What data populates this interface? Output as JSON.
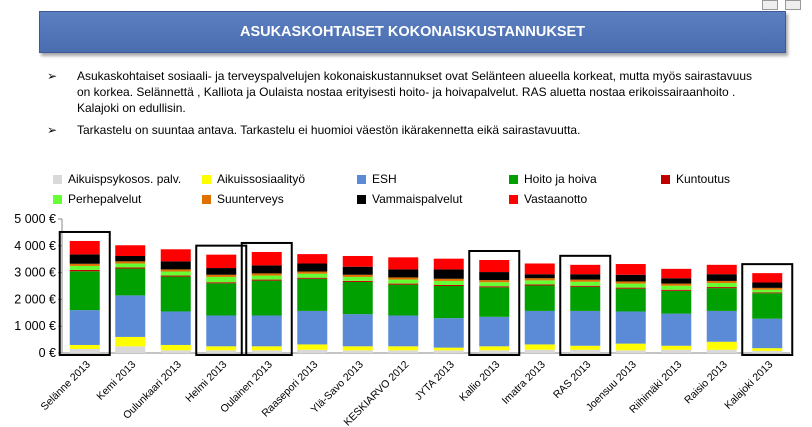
{
  "title": "ASUKASKOHTAISET KOKONAISKUSTANNUKSET",
  "bullets": [
    "Asukaskohtaiset sosiaali- ja terveyspalvelujen  kokonaiskustannukset ovat Selänteen alueella korkeat, mutta myös sairastavuus on korkea.  Selännettä , Kalliota ja Oulaista nostaa erityisesti hoito- ja hoivapalvelut. RAS aluetta nostaa erikoissairaanhoito . Kalajoki on edullisin.",
    "Tarkastelu on suuntaa antava. Tarkastelu ei huomioi väestön ikärakennetta eikä sairastavuutta."
  ],
  "bullet_mark": "➢",
  "chart_data": {
    "type": "bar",
    "stacked": true,
    "categories": [
      "Selänne 2013",
      "Kemi 2013",
      "Oulunkaari 2013",
      "Helmi 2013",
      "Oulainen 2013",
      "Raasepori 2013",
      "Ylä-Savo 2013",
      "KESKIARVO 2012",
      "JYTA 2013",
      "Kallio 2013",
      "Imatra 2013",
      "RAS 2013",
      "Joensuu 2013",
      "Riihimäki 2013",
      "Raisio 2013",
      "Kalajoki 2013"
    ],
    "highlighted": [
      "Selänne 2013",
      "Helmi 2013",
      "Oulainen 2013",
      "Kallio 2013",
      "RAS 2013",
      "Kalajoki 2013"
    ],
    "series": [
      {
        "name": "Aikuispsykosos. palv.",
        "color": "#d9d9d9",
        "values": [
          150,
          250,
          100,
          100,
          100,
          120,
          100,
          100,
          100,
          100,
          120,
          120,
          100,
          120,
          120,
          80
        ]
      },
      {
        "name": "Aikuissosiaalityö",
        "color": "#ffff00",
        "values": [
          150,
          350,
          200,
          150,
          150,
          200,
          150,
          150,
          100,
          150,
          200,
          150,
          250,
          150,
          300,
          100
        ]
      },
      {
        "name": "ESH",
        "color": "#5b8bd6",
        "values": [
          1300,
          1550,
          1250,
          1150,
          1150,
          1250,
          1200,
          1150,
          1100,
          1100,
          1250,
          1300,
          1200,
          1200,
          1150,
          1100
        ]
      },
      {
        "name": "Hoito ja hoiva",
        "color": "#00a000",
        "values": [
          1450,
          1000,
          1300,
          1200,
          1300,
          1200,
          1200,
          1150,
          1200,
          1100,
          950,
          900,
          850,
          850,
          850,
          950
        ]
      },
      {
        "name": "Kuntoutus",
        "color": "#c00000",
        "values": [
          50,
          40,
          40,
          40,
          40,
          40,
          40,
          40,
          40,
          40,
          40,
          40,
          40,
          40,
          40,
          30
        ]
      },
      {
        "name": "Perhepalvelut",
        "color": "#66ff33",
        "values": [
          150,
          150,
          150,
          200,
          150,
          150,
          150,
          150,
          150,
          150,
          150,
          150,
          150,
          150,
          150,
          100
        ]
      },
      {
        "name": "Suunterveys",
        "color": "#e07000",
        "values": [
          80,
          80,
          80,
          80,
          80,
          80,
          80,
          80,
          80,
          80,
          80,
          80,
          80,
          80,
          80,
          70
        ]
      },
      {
        "name": "Vammaispalvelut",
        "color": "#000000",
        "values": [
          350,
          200,
          300,
          250,
          300,
          300,
          300,
          300,
          350,
          300,
          150,
          200,
          250,
          200,
          250,
          200
        ]
      },
      {
        "name": "Vastaanotto",
        "color": "#ff0000",
        "values": [
          500,
          400,
          450,
          500,
          500,
          350,
          400,
          450,
          400,
          450,
          400,
          350,
          400,
          350,
          350,
          350
        ]
      }
    ],
    "ylim": [
      0,
      5000
    ],
    "yticks": [
      0,
      1000,
      2000,
      3000,
      4000,
      5000
    ],
    "ytick_labels": [
      "0 €",
      "1 000 €",
      "2 000 €",
      "3 000 €",
      "4 000 €",
      "5 000 €"
    ],
    "grid": false,
    "legend_position": "top"
  }
}
